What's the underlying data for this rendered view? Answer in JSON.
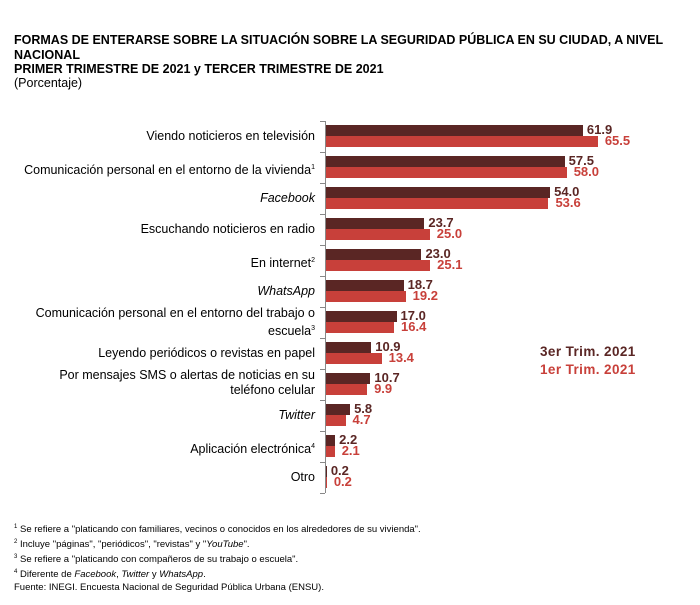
{
  "title_lines": [
    "FORMAS DE ENTERARSE SOBRE LA SITUACIÓN SOBRE LA SEGURIDAD PÚBLICA EN SU CIUDAD, A NIVEL",
    "NACIONAL",
    "PRIMER TRIMESTRE DE 2021 y TERCER TRIMESTRE DE 2021"
  ],
  "subtitle": "(Porcentaje)",
  "chart_data": {
    "type": "bar",
    "orientation": "horizontal",
    "categories": [
      {
        "label": "Viendo noticieros en televisión",
        "sup": "",
        "italic": false
      },
      {
        "label": "Comunicación personal en el entorno de la vivienda",
        "sup": "1",
        "italic": false
      },
      {
        "label": "Facebook",
        "sup": "",
        "italic": true
      },
      {
        "label": "Escuchando noticieros en radio",
        "sup": "",
        "italic": false
      },
      {
        "label": "En internet",
        "sup": "2",
        "italic": false
      },
      {
        "label": "WhatsApp",
        "sup": "",
        "italic": true
      },
      {
        "label": "Comunicación personal en el entorno del trabajo o escuela",
        "sup": "3",
        "italic": false
      },
      {
        "label": "Leyendo periódicos o revistas en papel",
        "sup": "",
        "italic": false
      },
      {
        "label": "Por mensajes SMS o alertas de noticias en su teléfono celular",
        "sup": "",
        "italic": false
      },
      {
        "label": "Twitter",
        "sup": "",
        "italic": true
      },
      {
        "label": "Aplicación electrónica",
        "sup": "4",
        "italic": false
      },
      {
        "label": "Otro",
        "sup": "",
        "italic": false
      }
    ],
    "series": [
      {
        "name": "3er Trim. 2021",
        "color": "#5a2624",
        "values": [
          61.9,
          57.5,
          54.0,
          23.7,
          23.0,
          18.7,
          17.0,
          10.9,
          10.7,
          5.8,
          2.2,
          0.2
        ]
      },
      {
        "name": "1er Trim. 2021",
        "color": "#c8403a",
        "values": [
          65.5,
          58.0,
          53.6,
          25.0,
          25.1,
          19.2,
          16.4,
          13.4,
          9.9,
          4.7,
          2.1,
          0.2
        ]
      }
    ],
    "xlim": [
      0,
      70
    ],
    "legend": "right"
  },
  "footnotes": [
    [
      {
        "sup": "1"
      },
      {
        "t": " Se refiere a \"platicando con familiares, vecinos o conocidos en los alrededores de su vivienda\"."
      }
    ],
    [
      {
        "sup": "2"
      },
      {
        "t": " Incluye \"páginas\", \"periódicos\", \"revistas\" y \""
      },
      {
        "t": "YouTube",
        "i": true
      },
      {
        "t": "\"."
      }
    ],
    [
      {
        "sup": "3"
      },
      {
        "t": " Se refiere a \"platicando con compañeros de su trabajo o escuela\"."
      }
    ],
    [
      {
        "sup": "4"
      },
      {
        "t": " Diferente de "
      },
      {
        "t": "Facebook",
        "i": true
      },
      {
        "t": ", "
      },
      {
        "t": "Twitter",
        "i": true
      },
      {
        "t": " y "
      },
      {
        "t": "WhatsApp",
        "i": true
      },
      {
        "t": "."
      }
    ],
    [
      {
        "t": "Fuente: INEGI. Encuesta Nacional de Seguridad Pública Urbana (ENSU)."
      }
    ]
  ]
}
